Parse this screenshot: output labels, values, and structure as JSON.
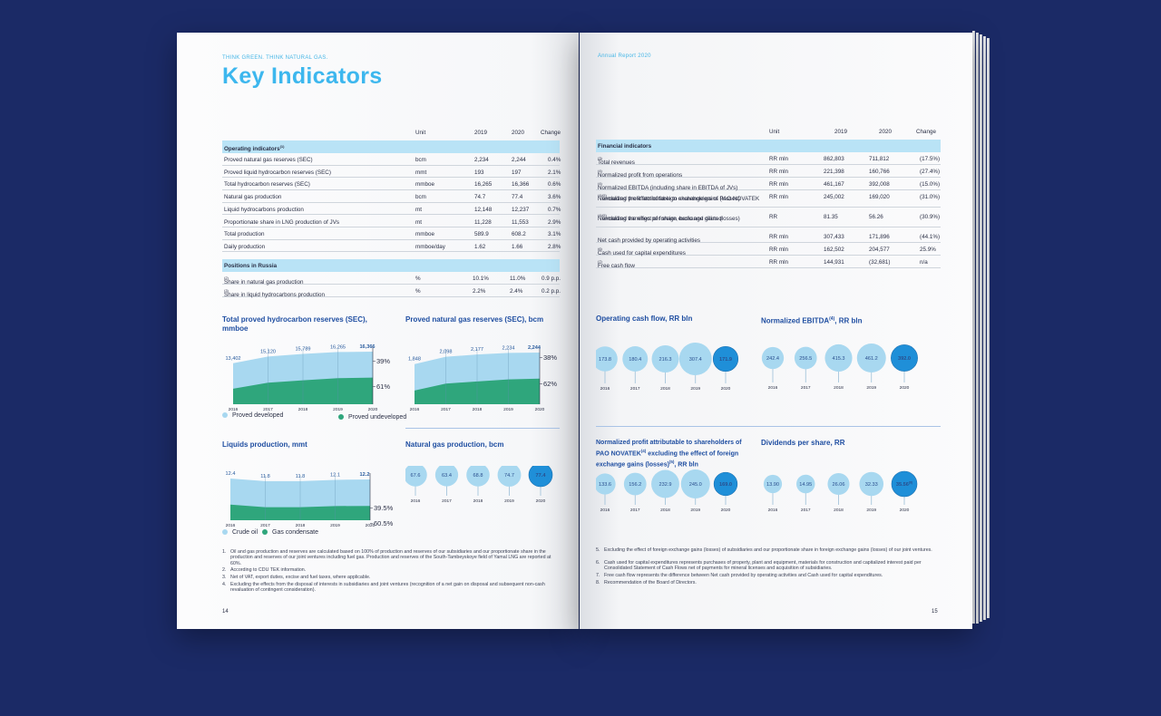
{
  "left": {
    "slogan": "THINK GREEN. THINK NATURAL GAS.",
    "title": "Key Indicators",
    "table_head": {
      "unit": "Unit",
      "y2019": "2019",
      "y2020": "2020",
      "change": "Change"
    },
    "section1": "Operating indicators",
    "section1_sup": "(1)",
    "operating": [
      {
        "label": "Proved natural gas reserves (SEC)",
        "unit": "bcm",
        "v2019": "2,234",
        "v2020": "2,244",
        "change": "0.4%"
      },
      {
        "label": "Proved liquid hydrocarbon reserves (SEC)",
        "unit": "mmt",
        "v2019": "193",
        "v2020": "197",
        "change": "2.1%"
      },
      {
        "label": "Total hydrocarbon reserves (SEC)",
        "unit": "mmboe",
        "v2019": "16,265",
        "v2020": "16,366",
        "change": "0.6%"
      },
      {
        "label": "Natural gas production",
        "unit": "bcm",
        "v2019": "74.7",
        "v2020": "77.4",
        "change": "3.6%"
      },
      {
        "label": "Liquid hydrocarbons production",
        "unit": "mt",
        "v2019": "12,148",
        "v2020": "12,237",
        "change": "0.7%"
      },
      {
        "label": "Proportionate share in LNG production of JVs",
        "unit": "mt",
        "v2019": "11,228",
        "v2020": "11,553",
        "change": "2.9%"
      },
      {
        "label": "Total production",
        "unit": "mmboe",
        "v2019": "589.9",
        "v2020": "608.2",
        "change": "3.1%"
      },
      {
        "label": "Daily production",
        "unit": "mmboe/day",
        "v2019": "1.62",
        "v2020": "1.66",
        "change": "2.8%"
      }
    ],
    "section2": "Positions in Russia",
    "positions": [
      {
        "label": "Share in natural gas production",
        "sup": "(2)",
        "unit": "%",
        "v2019": "10.1%",
        "v2020": "11.0%",
        "change": "0.9 p.p."
      },
      {
        "label": "Share in liquid hydrocarbons production",
        "sup": "(3)",
        "unit": "%",
        "v2019": "2.2%",
        "v2020": "2.4%",
        "change": "0.2 p.p."
      }
    ],
    "legend_reserves": {
      "developed": "Proved developed",
      "undeveloped": "Proved undeveloped"
    },
    "legend_liquids": {
      "crude": "Crude oil",
      "condensate": "Gas condensate"
    },
    "notes": [
      {
        "n": "1.",
        "t": "Oil and gas production and reserves are calculated based on 100% of production and reserves of our subsidiaries and our proportionate share in the production and reserves of our joint ventures including fuel gas. Production and reserves of the South-Tambeyskoye field of Yamal LNG are reported at 60%."
      },
      {
        "n": "2.",
        "t": "According to CDU TEK information."
      },
      {
        "n": "3.",
        "t": "Net of VAT, export duties, excise and fuel taxes, where applicable."
      },
      {
        "n": "4.",
        "t": "Excluding the effects from the disposal of interests in subsidiaries and joint ventures (recognition of a net gain on disposal and subsequent non-cash revaluation of contingent consideration)."
      }
    ],
    "page_number": "14"
  },
  "right": {
    "header": "Annual Report 2020",
    "table_head": {
      "unit": "Unit",
      "y2019": "2019",
      "y2020": "2020",
      "change": "Change"
    },
    "section": "Financial indicators",
    "financial": [
      {
        "label": "Total revenues",
        "sup": "(3)",
        "unit": "RR mln",
        "v2019": "862,803",
        "v2020": "711,812",
        "change": "(17.5%)"
      },
      {
        "label": "Normalized profit from operations",
        "sup": "(4)",
        "unit": "RR mln",
        "v2019": "221,398",
        "v2020": "160,766",
        "change": "(27.4%)"
      },
      {
        "label": "Normalized EBITDA (including share in EBITDA of JVs)",
        "sup": "(4)",
        "unit": "RR mln",
        "v2019": "461,167",
        "v2020": "392,008",
        "change": "(15.0%)"
      },
      {
        "label": "Normalized profit attributable to shareholders of PAO NOVATEK",
        "sup": "(4)",
        "label2": " excluding the effect of foreign exchange gains (losses)",
        "sup2": "(5)",
        "unit": "RR mln",
        "v2019": "245,002",
        "v2020": "169,020",
        "change": "(31.0%)"
      },
      {
        "label": "Normalized earnings per share, basic and diluted",
        "sup": "(4)",
        "label2": " excluding the effect of foreign exchange gains (losses)",
        "sup2": "(5)",
        "unit": "RR",
        "v2019": "81.35",
        "v2020": "56.26",
        "change": "(30.9%)"
      },
      {
        "label": "Net cash provided by operating activities",
        "unit": "RR mln",
        "v2019": "307,433",
        "v2020": "171,896",
        "change": "(44.1%)"
      },
      {
        "label": "Cash used for capital expenditures",
        "sup": "(6)",
        "unit": "RR mln",
        "v2019": "162,502",
        "v2020": "204,577",
        "change": "25.9%"
      },
      {
        "label": "Free cash flow",
        "sup": "(7)",
        "unit": "RR mln",
        "v2019": "144,931",
        "v2020": "(32,681)",
        "change": "n/a"
      }
    ],
    "notes": [
      {
        "n": "5.",
        "t": "Excluding the effect of foreign exchange gains (losses) of subsidiaries and our proportionate share in foreign exchange gains (losses) of our joint ventures."
      },
      {
        "n": "6.",
        "t": "Cash used for capital expenditures represents purchases of property, plant and equipment, materials for construction and capitalized interest paid per Consolidated Statement of Cash Flows net of payments for mineral licenses and acquisition of subsidiaries."
      },
      {
        "n": "7.",
        "t": "Free cash flow represents the difference between Net cash provided by operating activities and Cash used for capital expenditures."
      },
      {
        "n": "8.",
        "t": "Recommendation of the Board of Directors."
      }
    ],
    "page_number": "15"
  },
  "colors": {
    "accent": "#3db7ee",
    "navy": "#1f4ea1",
    "light_blue": "#a8d8f0",
    "green": "#2fa67c",
    "bubble_dark": "#1f8fd8",
    "section_band": "#b9e3f6",
    "background": "#1b2a66"
  },
  "chart_data": [
    {
      "id": "reserves",
      "type": "area",
      "title": "Total proved hydrocarbon reserves (SEC), mmboe",
      "x": [
        "2016",
        "2017",
        "2018",
        "2019",
        "2020"
      ],
      "totals": [
        "13,402",
        "15,120",
        "15,789",
        "16,265",
        "16,366"
      ],
      "series": [
        {
          "name": "Proved developed",
          "share": "39%"
        },
        {
          "name": "Proved undeveloped",
          "share": "61%"
        }
      ],
      "totals_num": [
        13402,
        15120,
        15789,
        16265,
        16366
      ],
      "ylim": [
        0,
        17000
      ]
    },
    {
      "id": "gas_reserves",
      "type": "area",
      "title": "Proved natural gas reserves (SEC), bcm",
      "x": [
        "2016",
        "2017",
        "2018",
        "2019",
        "2020"
      ],
      "totals": [
        "1,848",
        "2,098",
        "2,177",
        "2,234",
        "2,244"
      ],
      "series": [
        {
          "share": "38%"
        },
        {
          "share": "62%"
        }
      ],
      "totals_num": [
        1848,
        2098,
        2177,
        2234,
        2244
      ],
      "ylim": [
        0,
        2400
      ]
    },
    {
      "id": "liquids",
      "type": "area",
      "title": "Liquids production, mmt",
      "x": [
        "2016",
        "2017",
        "2018",
        "2019",
        "2020"
      ],
      "totals": [
        "12.4",
        "11.8",
        "11.8",
        "12.1",
        "12.2"
      ],
      "series": [
        {
          "name": "Crude oil",
          "share": "39.5%"
        },
        {
          "name": "Gas condensate",
          "share": "60.5%"
        }
      ],
      "totals_num": [
        12.4,
        11.8,
        11.8,
        12.1,
        12.2
      ],
      "ylim": [
        0,
        13
      ]
    },
    {
      "id": "gas_production",
      "type": "bubble",
      "title": "Natural gas production, bcm",
      "x": [
        "2016",
        "2017",
        "2018",
        "2019",
        "2020"
      ],
      "labels": [
        "67.6",
        "63.4",
        "68.8",
        "74.7",
        "77.4"
      ],
      "values": [
        67.6,
        63.4,
        68.8,
        74.7,
        77.4
      ]
    },
    {
      "id": "ocf",
      "type": "bubble",
      "title": "Operating cash flow, RR bln",
      "x": [
        "2016",
        "2017",
        "2018",
        "2019",
        "2020"
      ],
      "labels": [
        "173.8",
        "180.4",
        "216.3",
        "307.4",
        "171.9"
      ],
      "values": [
        173.8,
        180.4,
        216.3,
        307.4,
        171.9
      ]
    },
    {
      "id": "ebitda",
      "type": "bubble",
      "title": "Normalized EBITDA",
      "title_sup": "(4)",
      "title_after": ", RR bln",
      "x": [
        "2016",
        "2017",
        "2018",
        "2019",
        "2020"
      ],
      "labels": [
        "242.4",
        "256.5",
        "415.3",
        "461.2",
        "392.0"
      ],
      "values": [
        242.4,
        256.5,
        415.3,
        461.2,
        392.0
      ]
    },
    {
      "id": "profit",
      "type": "bubble",
      "title_lines": [
        "Normalized profit attributable to shareholders of",
        "PAO NOVATEK",
        "(4)",
        " excluding the effect of foreign",
        "exchange gains (losses)",
        "(5)",
        ", RR bln"
      ],
      "x": [
        "2016",
        "2017",
        "2018",
        "2019",
        "2020"
      ],
      "labels": [
        "133.6",
        "156.2",
        "232.9",
        "245.0",
        "169.0"
      ],
      "values": [
        133.6,
        156.2,
        232.9,
        245.0,
        169.0
      ]
    },
    {
      "id": "dividends",
      "type": "bubble",
      "title": "Dividends per share, RR",
      "x": [
        "2016",
        "2017",
        "2018",
        "2019",
        "2020"
      ],
      "labels": [
        "13.90",
        "14.95",
        "26.06",
        "32.33",
        "35.56"
      ],
      "label_sup_last": "(8)",
      "values": [
        13.9,
        14.95,
        26.06,
        32.33,
        35.56
      ]
    }
  ]
}
